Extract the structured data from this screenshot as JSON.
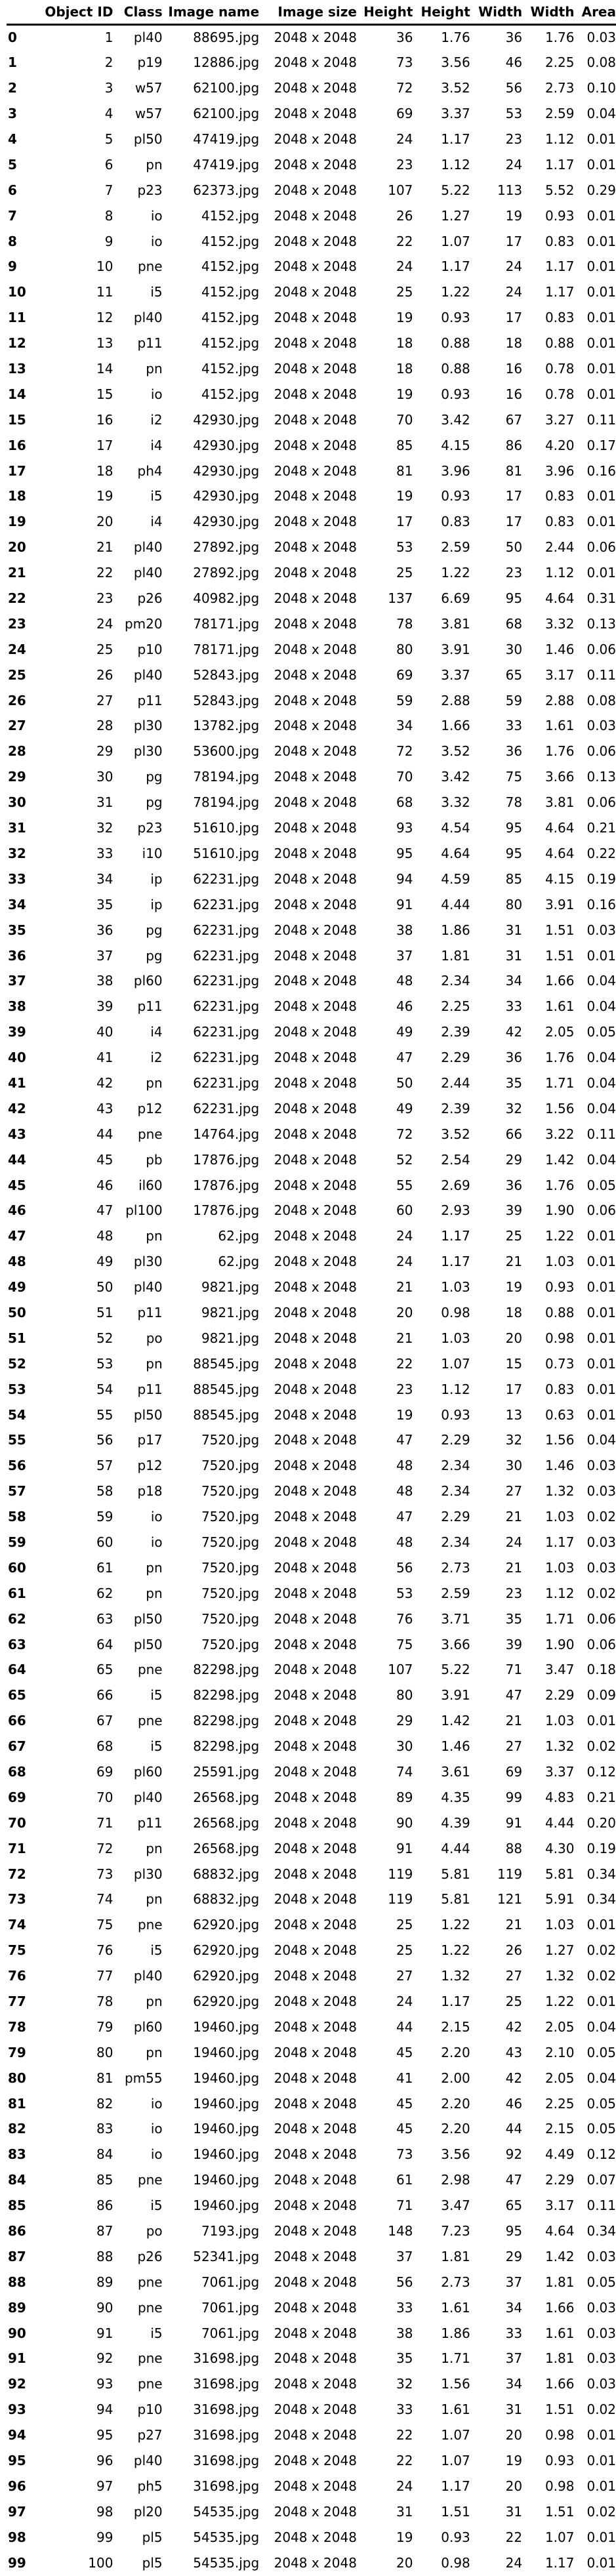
{
  "table": {
    "columns": [
      "",
      "Object ID",
      "Class",
      "Image name",
      "Image size",
      "Height",
      "Height",
      "Width",
      "Width",
      "Area"
    ],
    "rows": [
      [
        "0",
        "1",
        "pl40",
        "88695.jpg",
        "2048 x 2048",
        "36",
        "1.76",
        "36",
        "1.76",
        "0.03"
      ],
      [
        "1",
        "2",
        "p19",
        "12886.jpg",
        "2048 x 2048",
        "73",
        "3.56",
        "46",
        "2.25",
        "0.08"
      ],
      [
        "2",
        "3",
        "w57",
        "62100.jpg",
        "2048 x 2048",
        "72",
        "3.52",
        "56",
        "2.73",
        "0.10"
      ],
      [
        "3",
        "4",
        "w57",
        "62100.jpg",
        "2048 x 2048",
        "69",
        "3.37",
        "53",
        "2.59",
        "0.04"
      ],
      [
        "4",
        "5",
        "pl50",
        "47419.jpg",
        "2048 x 2048",
        "24",
        "1.17",
        "23",
        "1.12",
        "0.01"
      ],
      [
        "5",
        "6",
        "pn",
        "47419.jpg",
        "2048 x 2048",
        "23",
        "1.12",
        "24",
        "1.17",
        "0.01"
      ],
      [
        "6",
        "7",
        "p23",
        "62373.jpg",
        "2048 x 2048",
        "107",
        "5.22",
        "113",
        "5.52",
        "0.29"
      ],
      [
        "7",
        "8",
        "io",
        "4152.jpg",
        "2048 x 2048",
        "26",
        "1.27",
        "19",
        "0.93",
        "0.01"
      ],
      [
        "8",
        "9",
        "io",
        "4152.jpg",
        "2048 x 2048",
        "22",
        "1.07",
        "17",
        "0.83",
        "0.01"
      ],
      [
        "9",
        "10",
        "pne",
        "4152.jpg",
        "2048 x 2048",
        "24",
        "1.17",
        "24",
        "1.17",
        "0.01"
      ],
      [
        "10",
        "11",
        "i5",
        "4152.jpg",
        "2048 x 2048",
        "25",
        "1.22",
        "24",
        "1.17",
        "0.01"
      ],
      [
        "11",
        "12",
        "pl40",
        "4152.jpg",
        "2048 x 2048",
        "19",
        "0.93",
        "17",
        "0.83",
        "0.01"
      ],
      [
        "12",
        "13",
        "p11",
        "4152.jpg",
        "2048 x 2048",
        "18",
        "0.88",
        "18",
        "0.88",
        "0.01"
      ],
      [
        "13",
        "14",
        "pn",
        "4152.jpg",
        "2048 x 2048",
        "18",
        "0.88",
        "16",
        "0.78",
        "0.01"
      ],
      [
        "14",
        "15",
        "io",
        "4152.jpg",
        "2048 x 2048",
        "19",
        "0.93",
        "16",
        "0.78",
        "0.01"
      ],
      [
        "15",
        "16",
        "i2",
        "42930.jpg",
        "2048 x 2048",
        "70",
        "3.42",
        "67",
        "3.27",
        "0.11"
      ],
      [
        "16",
        "17",
        "i4",
        "42930.jpg",
        "2048 x 2048",
        "85",
        "4.15",
        "86",
        "4.20",
        "0.17"
      ],
      [
        "17",
        "18",
        "ph4",
        "42930.jpg",
        "2048 x 2048",
        "81",
        "3.96",
        "81",
        "3.96",
        "0.16"
      ],
      [
        "18",
        "19",
        "i5",
        "42930.jpg",
        "2048 x 2048",
        "19",
        "0.93",
        "17",
        "0.83",
        "0.01"
      ],
      [
        "19",
        "20",
        "i4",
        "42930.jpg",
        "2048 x 2048",
        "17",
        "0.83",
        "17",
        "0.83",
        "0.01"
      ],
      [
        "20",
        "21",
        "pl40",
        "27892.jpg",
        "2048 x 2048",
        "53",
        "2.59",
        "50",
        "2.44",
        "0.06"
      ],
      [
        "21",
        "22",
        "pl40",
        "27892.jpg",
        "2048 x 2048",
        "25",
        "1.22",
        "23",
        "1.12",
        "0.01"
      ],
      [
        "22",
        "23",
        "p26",
        "40982.jpg",
        "2048 x 2048",
        "137",
        "6.69",
        "95",
        "4.64",
        "0.31"
      ],
      [
        "23",
        "24",
        "pm20",
        "78171.jpg",
        "2048 x 2048",
        "78",
        "3.81",
        "68",
        "3.32",
        "0.13"
      ],
      [
        "24",
        "25",
        "p10",
        "78171.jpg",
        "2048 x 2048",
        "80",
        "3.91",
        "30",
        "1.46",
        "0.06"
      ],
      [
        "25",
        "26",
        "pl40",
        "52843.jpg",
        "2048 x 2048",
        "69",
        "3.37",
        "65",
        "3.17",
        "0.11"
      ],
      [
        "26",
        "27",
        "p11",
        "52843.jpg",
        "2048 x 2048",
        "59",
        "2.88",
        "59",
        "2.88",
        "0.08"
      ],
      [
        "27",
        "28",
        "pl30",
        "13782.jpg",
        "2048 x 2048",
        "34",
        "1.66",
        "33",
        "1.61",
        "0.03"
      ],
      [
        "28",
        "29",
        "pl30",
        "53600.jpg",
        "2048 x 2048",
        "72",
        "3.52",
        "36",
        "1.76",
        "0.06"
      ],
      [
        "29",
        "30",
        "pg",
        "78194.jpg",
        "2048 x 2048",
        "70",
        "3.42",
        "75",
        "3.66",
        "0.13"
      ],
      [
        "30",
        "31",
        "pg",
        "78194.jpg",
        "2048 x 2048",
        "68",
        "3.32",
        "78",
        "3.81",
        "0.06"
      ],
      [
        "31",
        "32",
        "p23",
        "51610.jpg",
        "2048 x 2048",
        "93",
        "4.54",
        "95",
        "4.64",
        "0.21"
      ],
      [
        "32",
        "33",
        "i10",
        "51610.jpg",
        "2048 x 2048",
        "95",
        "4.64",
        "95",
        "4.64",
        "0.22"
      ],
      [
        "33",
        "34",
        "ip",
        "62231.jpg",
        "2048 x 2048",
        "94",
        "4.59",
        "85",
        "4.15",
        "0.19"
      ],
      [
        "34",
        "35",
        "ip",
        "62231.jpg",
        "2048 x 2048",
        "91",
        "4.44",
        "80",
        "3.91",
        "0.16"
      ],
      [
        "35",
        "36",
        "pg",
        "62231.jpg",
        "2048 x 2048",
        "38",
        "1.86",
        "31",
        "1.51",
        "0.03"
      ],
      [
        "36",
        "37",
        "pg",
        "62231.jpg",
        "2048 x 2048",
        "37",
        "1.81",
        "31",
        "1.51",
        "0.01"
      ],
      [
        "37",
        "38",
        "pl60",
        "62231.jpg",
        "2048 x 2048",
        "48",
        "2.34",
        "34",
        "1.66",
        "0.04"
      ],
      [
        "38",
        "39",
        "p11",
        "62231.jpg",
        "2048 x 2048",
        "46",
        "2.25",
        "33",
        "1.61",
        "0.04"
      ],
      [
        "39",
        "40",
        "i4",
        "62231.jpg",
        "2048 x 2048",
        "49",
        "2.39",
        "42",
        "2.05",
        "0.05"
      ],
      [
        "40",
        "41",
        "i2",
        "62231.jpg",
        "2048 x 2048",
        "47",
        "2.29",
        "36",
        "1.76",
        "0.04"
      ],
      [
        "41",
        "42",
        "pn",
        "62231.jpg",
        "2048 x 2048",
        "50",
        "2.44",
        "35",
        "1.71",
        "0.04"
      ],
      [
        "42",
        "43",
        "p12",
        "62231.jpg",
        "2048 x 2048",
        "49",
        "2.39",
        "32",
        "1.56",
        "0.04"
      ],
      [
        "43",
        "44",
        "pne",
        "14764.jpg",
        "2048 x 2048",
        "72",
        "3.52",
        "66",
        "3.22",
        "0.11"
      ],
      [
        "44",
        "45",
        "pb",
        "17876.jpg",
        "2048 x 2048",
        "52",
        "2.54",
        "29",
        "1.42",
        "0.04"
      ],
      [
        "45",
        "46",
        "il60",
        "17876.jpg",
        "2048 x 2048",
        "55",
        "2.69",
        "36",
        "1.76",
        "0.05"
      ],
      [
        "46",
        "47",
        "pl100",
        "17876.jpg",
        "2048 x 2048",
        "60",
        "2.93",
        "39",
        "1.90",
        "0.06"
      ],
      [
        "47",
        "48",
        "pn",
        "62.jpg",
        "2048 x 2048",
        "24",
        "1.17",
        "25",
        "1.22",
        "0.01"
      ],
      [
        "48",
        "49",
        "pl30",
        "62.jpg",
        "2048 x 2048",
        "24",
        "1.17",
        "21",
        "1.03",
        "0.01"
      ],
      [
        "49",
        "50",
        "pl40",
        "9821.jpg",
        "2048 x 2048",
        "21",
        "1.03",
        "19",
        "0.93",
        "0.01"
      ],
      [
        "50",
        "51",
        "p11",
        "9821.jpg",
        "2048 x 2048",
        "20",
        "0.98",
        "18",
        "0.88",
        "0.01"
      ],
      [
        "51",
        "52",
        "po",
        "9821.jpg",
        "2048 x 2048",
        "21",
        "1.03",
        "20",
        "0.98",
        "0.01"
      ],
      [
        "52",
        "53",
        "pn",
        "88545.jpg",
        "2048 x 2048",
        "22",
        "1.07",
        "15",
        "0.73",
        "0.01"
      ],
      [
        "53",
        "54",
        "p11",
        "88545.jpg",
        "2048 x 2048",
        "23",
        "1.12",
        "17",
        "0.83",
        "0.01"
      ],
      [
        "54",
        "55",
        "pl50",
        "88545.jpg",
        "2048 x 2048",
        "19",
        "0.93",
        "13",
        "0.63",
        "0.01"
      ],
      [
        "55",
        "56",
        "p17",
        "7520.jpg",
        "2048 x 2048",
        "47",
        "2.29",
        "32",
        "1.56",
        "0.04"
      ],
      [
        "56",
        "57",
        "p12",
        "7520.jpg",
        "2048 x 2048",
        "48",
        "2.34",
        "30",
        "1.46",
        "0.03"
      ],
      [
        "57",
        "58",
        "p18",
        "7520.jpg",
        "2048 x 2048",
        "48",
        "2.34",
        "27",
        "1.32",
        "0.03"
      ],
      [
        "58",
        "59",
        "io",
        "7520.jpg",
        "2048 x 2048",
        "47",
        "2.29",
        "21",
        "1.03",
        "0.02"
      ],
      [
        "59",
        "60",
        "io",
        "7520.jpg",
        "2048 x 2048",
        "48",
        "2.34",
        "24",
        "1.17",
        "0.03"
      ],
      [
        "60",
        "61",
        "pn",
        "7520.jpg",
        "2048 x 2048",
        "56",
        "2.73",
        "21",
        "1.03",
        "0.03"
      ],
      [
        "61",
        "62",
        "pn",
        "7520.jpg",
        "2048 x 2048",
        "53",
        "2.59",
        "23",
        "1.12",
        "0.02"
      ],
      [
        "62",
        "63",
        "pl50",
        "7520.jpg",
        "2048 x 2048",
        "76",
        "3.71",
        "35",
        "1.71",
        "0.06"
      ],
      [
        "63",
        "64",
        "pl50",
        "7520.jpg",
        "2048 x 2048",
        "75",
        "3.66",
        "39",
        "1.90",
        "0.06"
      ],
      [
        "64",
        "65",
        "pne",
        "82298.jpg",
        "2048 x 2048",
        "107",
        "5.22",
        "71",
        "3.47",
        "0.18"
      ],
      [
        "65",
        "66",
        "i5",
        "82298.jpg",
        "2048 x 2048",
        "80",
        "3.91",
        "47",
        "2.29",
        "0.09"
      ],
      [
        "66",
        "67",
        "pne",
        "82298.jpg",
        "2048 x 2048",
        "29",
        "1.42",
        "21",
        "1.03",
        "0.01"
      ],
      [
        "67",
        "68",
        "i5",
        "82298.jpg",
        "2048 x 2048",
        "30",
        "1.46",
        "27",
        "1.32",
        "0.02"
      ],
      [
        "68",
        "69",
        "pl60",
        "25591.jpg",
        "2048 x 2048",
        "74",
        "3.61",
        "69",
        "3.37",
        "0.12"
      ],
      [
        "69",
        "70",
        "pl40",
        "26568.jpg",
        "2048 x 2048",
        "89",
        "4.35",
        "99",
        "4.83",
        "0.21"
      ],
      [
        "70",
        "71",
        "p11",
        "26568.jpg",
        "2048 x 2048",
        "90",
        "4.39",
        "91",
        "4.44",
        "0.20"
      ],
      [
        "71",
        "72",
        "pn",
        "26568.jpg",
        "2048 x 2048",
        "91",
        "4.44",
        "88",
        "4.30",
        "0.19"
      ],
      [
        "72",
        "73",
        "pl30",
        "68832.jpg",
        "2048 x 2048",
        "119",
        "5.81",
        "119",
        "5.81",
        "0.34"
      ],
      [
        "73",
        "74",
        "pn",
        "68832.jpg",
        "2048 x 2048",
        "119",
        "5.81",
        "121",
        "5.91",
        "0.34"
      ],
      [
        "74",
        "75",
        "pne",
        "62920.jpg",
        "2048 x 2048",
        "25",
        "1.22",
        "21",
        "1.03",
        "0.01"
      ],
      [
        "75",
        "76",
        "i5",
        "62920.jpg",
        "2048 x 2048",
        "25",
        "1.22",
        "26",
        "1.27",
        "0.02"
      ],
      [
        "76",
        "77",
        "pl40",
        "62920.jpg",
        "2048 x 2048",
        "27",
        "1.32",
        "27",
        "1.32",
        "0.02"
      ],
      [
        "77",
        "78",
        "pn",
        "62920.jpg",
        "2048 x 2048",
        "24",
        "1.17",
        "25",
        "1.22",
        "0.01"
      ],
      [
        "78",
        "79",
        "pl60",
        "19460.jpg",
        "2048 x 2048",
        "44",
        "2.15",
        "42",
        "2.05",
        "0.04"
      ],
      [
        "79",
        "80",
        "pn",
        "19460.jpg",
        "2048 x 2048",
        "45",
        "2.20",
        "43",
        "2.10",
        "0.05"
      ],
      [
        "80",
        "81",
        "pm55",
        "19460.jpg",
        "2048 x 2048",
        "41",
        "2.00",
        "42",
        "2.05",
        "0.04"
      ],
      [
        "81",
        "82",
        "io",
        "19460.jpg",
        "2048 x 2048",
        "45",
        "2.20",
        "46",
        "2.25",
        "0.05"
      ],
      [
        "82",
        "83",
        "io",
        "19460.jpg",
        "2048 x 2048",
        "45",
        "2.20",
        "44",
        "2.15",
        "0.05"
      ],
      [
        "83",
        "84",
        "io",
        "19460.jpg",
        "2048 x 2048",
        "73",
        "3.56",
        "92",
        "4.49",
        "0.12"
      ],
      [
        "84",
        "85",
        "pne",
        "19460.jpg",
        "2048 x 2048",
        "61",
        "2.98",
        "47",
        "2.29",
        "0.07"
      ],
      [
        "85",
        "86",
        "i5",
        "19460.jpg",
        "2048 x 2048",
        "71",
        "3.47",
        "65",
        "3.17",
        "0.11"
      ],
      [
        "86",
        "87",
        "po",
        "7193.jpg",
        "2048 x 2048",
        "148",
        "7.23",
        "95",
        "4.64",
        "0.34"
      ],
      [
        "87",
        "88",
        "p26",
        "52341.jpg",
        "2048 x 2048",
        "37",
        "1.81",
        "29",
        "1.42",
        "0.03"
      ],
      [
        "88",
        "89",
        "pne",
        "7061.jpg",
        "2048 x 2048",
        "56",
        "2.73",
        "37",
        "1.81",
        "0.05"
      ],
      [
        "89",
        "90",
        "pne",
        "7061.jpg",
        "2048 x 2048",
        "33",
        "1.61",
        "34",
        "1.66",
        "0.03"
      ],
      [
        "90",
        "91",
        "i5",
        "7061.jpg",
        "2048 x 2048",
        "38",
        "1.86",
        "33",
        "1.61",
        "0.03"
      ],
      [
        "91",
        "92",
        "pne",
        "31698.jpg",
        "2048 x 2048",
        "35",
        "1.71",
        "37",
        "1.81",
        "0.03"
      ],
      [
        "92",
        "93",
        "pne",
        "31698.jpg",
        "2048 x 2048",
        "32",
        "1.56",
        "34",
        "1.66",
        "0.03"
      ],
      [
        "93",
        "94",
        "p10",
        "31698.jpg",
        "2048 x 2048",
        "33",
        "1.61",
        "31",
        "1.51",
        "0.02"
      ],
      [
        "94",
        "95",
        "p27",
        "31698.jpg",
        "2048 x 2048",
        "22",
        "1.07",
        "20",
        "0.98",
        "0.01"
      ],
      [
        "95",
        "96",
        "pl40",
        "31698.jpg",
        "2048 x 2048",
        "22",
        "1.07",
        "19",
        "0.93",
        "0.01"
      ],
      [
        "96",
        "97",
        "ph5",
        "31698.jpg",
        "2048 x 2048",
        "24",
        "1.17",
        "20",
        "0.98",
        "0.01"
      ],
      [
        "97",
        "98",
        "pl20",
        "54535.jpg",
        "2048 x 2048",
        "31",
        "1.51",
        "31",
        "1.51",
        "0.02"
      ],
      [
        "98",
        "99",
        "pl5",
        "54535.jpg",
        "2048 x 2048",
        "19",
        "0.93",
        "22",
        "1.07",
        "0.01"
      ],
      [
        "99",
        "100",
        "pl5",
        "54535.jpg",
        "2048 x 2048",
        "20",
        "0.98",
        "24",
        "1.17",
        "0.01"
      ]
    ]
  }
}
